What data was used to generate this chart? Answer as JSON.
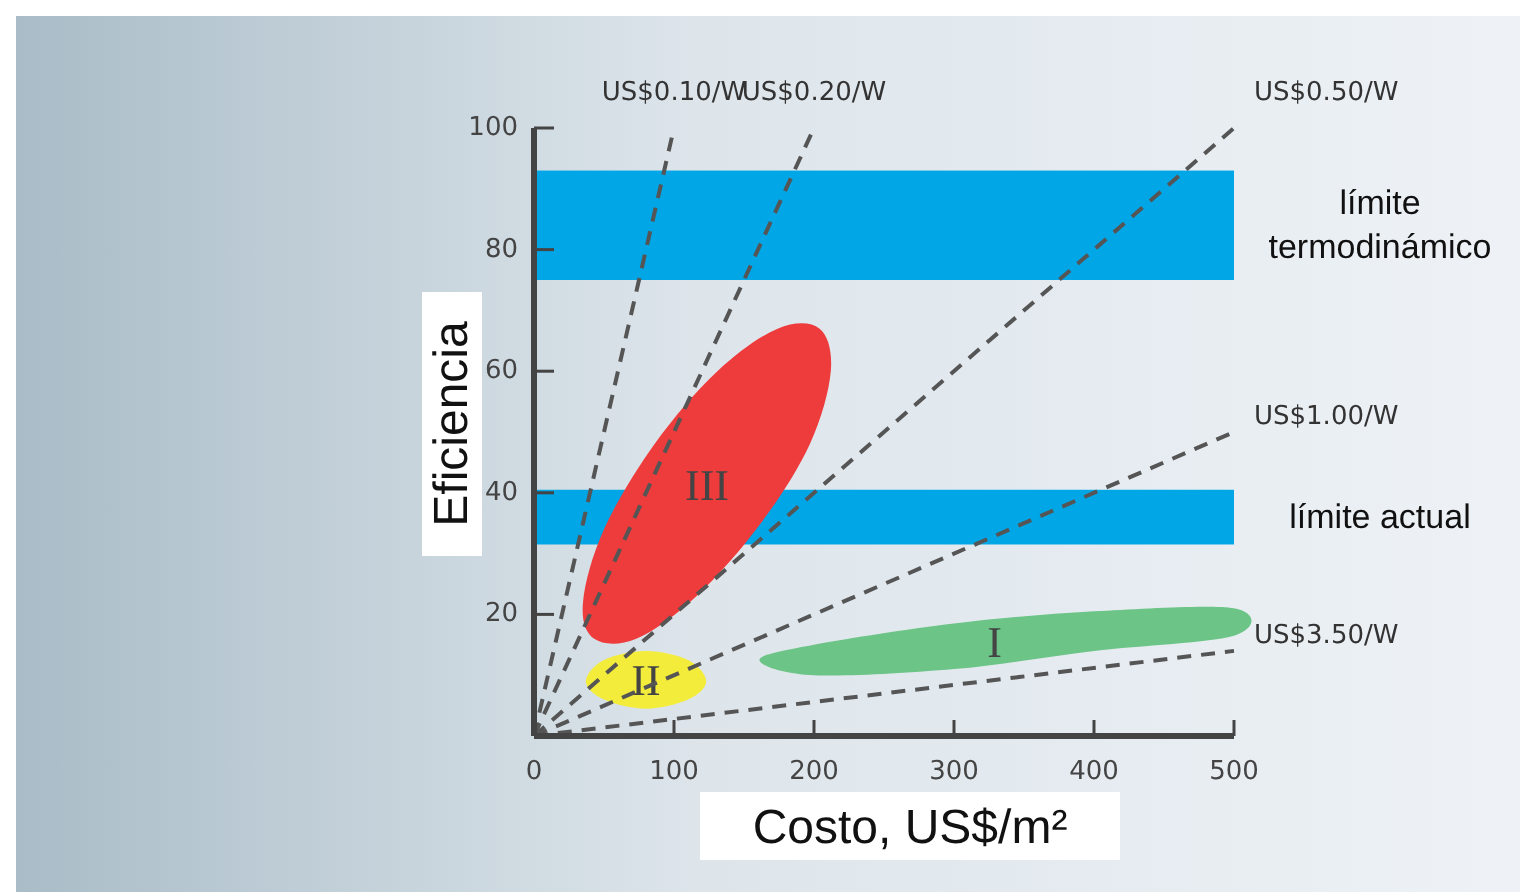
{
  "chart_data": {
    "type": "line",
    "xlabel": "Costo, US$/m²",
    "ylabel": "Eficiencia",
    "xlim": [
      0,
      500
    ],
    "ylim": [
      0,
      100
    ],
    "xticks": [
      0,
      100,
      200,
      300,
      400,
      500
    ],
    "yticks": [
      20,
      40,
      60,
      80,
      100
    ],
    "grid": false,
    "line_style": "dashed",
    "marker": "none",
    "bands": [
      {
        "axis": "y",
        "from": 75,
        "to": 93,
        "label": "límite termodinámico",
        "color": "#00a6e6"
      },
      {
        "axis": "y",
        "from": 31.5,
        "to": 40.5,
        "label": "límite actual",
        "color": "#00a6e6"
      }
    ],
    "series": [
      {
        "name": "III",
        "type": "area",
        "color": "#ee3b3b",
        "x": [
          204,
          212,
          197,
          162,
          116,
          73,
          43,
          35,
          50,
          86,
          131,
          174
        ],
        "values": [
          67,
          60,
          48,
          35,
          23,
          16,
          16,
          22,
          34,
          48,
          60,
          67
        ]
      },
      {
        "name": "II",
        "type": "area",
        "color": "#f4ec3a",
        "x": [
          37,
          50,
          80,
          110,
          123,
          110,
          80,
          50
        ],
        "values": [
          9,
          12.5,
          14,
          12.5,
          9,
          6,
          4.5,
          6
        ]
      },
      {
        "name": "I",
        "type": "area",
        "color": "#6cc487",
        "x": [
          161,
          200,
          300,
          400,
          500,
          500,
          400,
          300,
          200
        ],
        "values": [
          12.5,
          15,
          18.5,
          20.5,
          21,
          16.5,
          14,
          11,
          10
        ]
      },
      {
        "name": "US$0.10/W",
        "color": "#555555",
        "x": [
          0,
          100
        ],
        "values": [
          0,
          100
        ]
      },
      {
        "name": "US$0.20/W",
        "color": "#555555",
        "x": [
          0,
          200
        ],
        "values": [
          0,
          100
        ]
      },
      {
        "name": "US$0.50/W",
        "color": "#555555",
        "x": [
          0,
          500
        ],
        "values": [
          0,
          100
        ]
      },
      {
        "name": "US$1.00/W",
        "color": "#555555",
        "x": [
          0,
          500
        ],
        "values": [
          0,
          50
        ]
      },
      {
        "name": "US$3.50/W",
        "color": "#555555",
        "x": [
          0,
          500
        ],
        "values": [
          0,
          14
        ]
      }
    ]
  }
}
